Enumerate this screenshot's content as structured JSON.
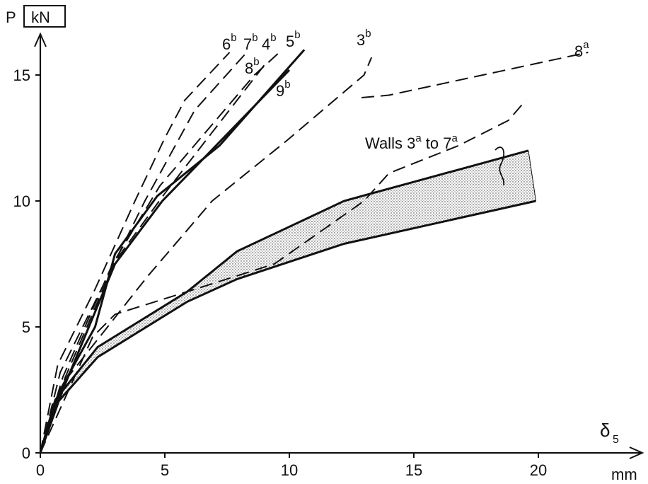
{
  "chart_data": {
    "type": "line",
    "ylabel": "P",
    "yunit": "kN",
    "xlabel": "δ",
    "xlabel_sub": "5",
    "xunit": "mm",
    "xlim": [
      0,
      23
    ],
    "ylim": [
      0,
      16.5
    ],
    "xticks": [
      0,
      5,
      10,
      15,
      20
    ],
    "yticks": [
      0,
      5,
      10,
      15
    ],
    "band": {
      "name": "Walls 3a to 7a",
      "label_main": "Walls 3",
      "label_sup1": "a",
      "label_mid": " to 7",
      "label_sup2": "a",
      "upper": [
        [
          0,
          0
        ],
        [
          0.6,
          2.1
        ],
        [
          2.3,
          4.2
        ],
        [
          5.9,
          6.4
        ],
        [
          7.9,
          8.0
        ],
        [
          12.2,
          10.0
        ],
        [
          19.6,
          12.0
        ]
      ],
      "lower": [
        [
          0,
          0
        ],
        [
          0.6,
          1.9
        ],
        [
          2.3,
          3.8
        ],
        [
          5.9,
          6.0
        ],
        [
          7.9,
          6.9
        ],
        [
          12.2,
          8.3
        ],
        [
          19.9,
          10.0
        ]
      ]
    },
    "series": [
      {
        "name": "6b",
        "main": "6",
        "sup": "b",
        "style": "dashed",
        "points": [
          [
            0,
            0
          ],
          [
            0.7,
            3.5
          ],
          [
            2.2,
            6.5
          ],
          [
            3.8,
            10
          ],
          [
            5.0,
            12.5
          ],
          [
            5.8,
            14
          ],
          [
            7.6,
            15.9
          ]
        ]
      },
      {
        "name": "7b",
        "main": "7",
        "sup": "b",
        "style": "dashed",
        "points": [
          [
            0,
            0
          ],
          [
            0.8,
            3.2
          ],
          [
            2.7,
            7
          ],
          [
            4.2,
            10
          ],
          [
            6.2,
            13.6
          ],
          [
            8.2,
            15.8
          ]
        ]
      },
      {
        "name": "4b",
        "main": "4",
        "sup": "b",
        "style": "dashed",
        "points": [
          [
            0,
            0
          ],
          [
            0.9,
            3
          ],
          [
            2.9,
            7.5
          ],
          [
            4.8,
            10.6
          ],
          [
            8.6,
            15.0
          ],
          [
            9.6,
            15.9
          ]
        ]
      },
      {
        "name": "8b",
        "main": "8",
        "sup": "b",
        "style": "dashed",
        "points": [
          [
            0,
            0
          ],
          [
            1.0,
            3
          ],
          [
            3.0,
            7.6
          ],
          [
            5.0,
            10.3
          ],
          [
            9.0,
            15.4
          ]
        ]
      },
      {
        "name": "5b",
        "main": "5",
        "sup": "b",
        "style": "solid",
        "points": [
          [
            0,
            0
          ],
          [
            0.8,
            2.5
          ],
          [
            2.2,
            5
          ],
          [
            3.0,
            7.9
          ],
          [
            4.7,
            10.2
          ],
          [
            7.2,
            12.2
          ],
          [
            10.6,
            16.0
          ]
        ]
      },
      {
        "name": "9b",
        "main": "9",
        "sup": "b",
        "style": "solid",
        "points": [
          [
            0,
            0
          ],
          [
            0.9,
            2.5
          ],
          [
            3.0,
            7.5
          ],
          [
            4.9,
            10.0
          ],
          [
            10.0,
            15.2
          ]
        ]
      },
      {
        "name": "3b",
        "main": "3",
        "sup": "b",
        "style": "dashed",
        "points": [
          [
            0,
            0
          ],
          [
            1.1,
            3
          ],
          [
            4.3,
            7
          ],
          [
            6.9,
            10.0
          ],
          [
            9.9,
            12.4
          ],
          [
            13.0,
            15.0
          ],
          [
            13.3,
            15.7
          ]
        ]
      },
      {
        "name": "8a",
        "main": "8",
        "sup": "a",
        "style": "dashed",
        "points": [
          [
            0,
            0
          ],
          [
            2.1,
            4.6
          ],
          [
            3.0,
            5.5
          ],
          [
            5.9,
            6.4
          ],
          [
            9.4,
            7.5
          ],
          [
            13.0,
            10.0
          ],
          [
            14.0,
            11.1
          ],
          [
            16.8,
            12.2
          ],
          [
            18.8,
            13.2
          ],
          [
            19.5,
            14.0
          ]
        ]
      },
      {
        "name": "8a-upper",
        "main": "",
        "sup": "",
        "style": "dashed",
        "points": [
          [
            12.9,
            14.1
          ],
          [
            14.0,
            14.2
          ],
          [
            22.0,
            15.9
          ]
        ]
      }
    ]
  }
}
